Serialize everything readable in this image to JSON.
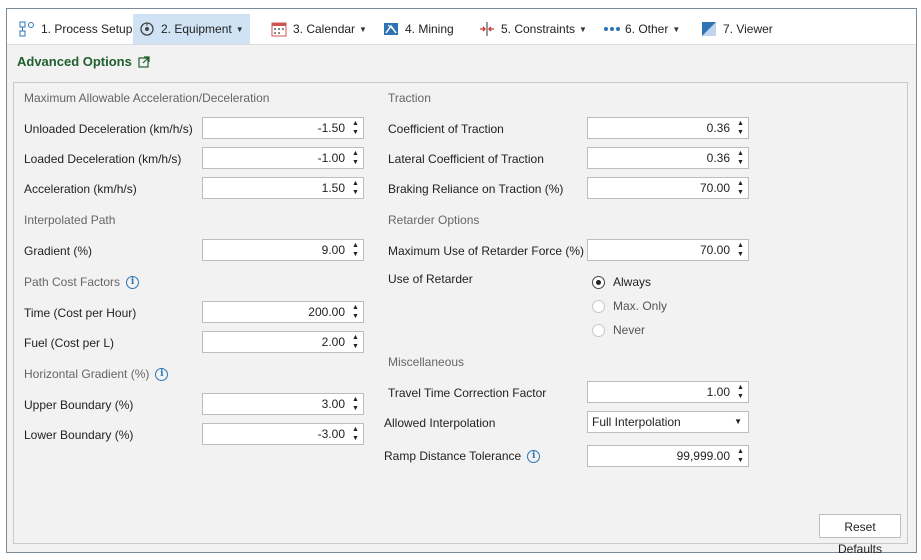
{
  "toolbar": {
    "items": [
      {
        "label": "1. Process Setup",
        "icon": "process-setup-icon",
        "has_dropdown": true
      },
      {
        "label": "2. Equipment",
        "icon": "equipment-icon",
        "has_dropdown": true,
        "active": true
      },
      {
        "label": "3. Calendar",
        "icon": "calendar-icon",
        "has_dropdown": true
      },
      {
        "label": "4. Mining",
        "icon": "mining-icon",
        "has_dropdown": false
      },
      {
        "label": "5. Constraints",
        "icon": "constraints-icon",
        "has_dropdown": true
      },
      {
        "label": "6. Other",
        "icon": "more-dots-icon",
        "has_dropdown": true
      },
      {
        "label": "7. Viewer",
        "icon": "viewer-icon",
        "has_dropdown": false
      }
    ],
    "caret": "▼"
  },
  "page": {
    "title": "Advanced Options"
  },
  "left": {
    "accel_section": "Maximum Allowable Acceleration/Deceleration",
    "unloaded_decel": {
      "label": "Unloaded Deceleration (km/h/s)",
      "value": "-1.50"
    },
    "loaded_decel": {
      "label": "Loaded Deceleration (km/h/s)",
      "value": "-1.00"
    },
    "acceleration": {
      "label": "Acceleration (km/h/s)",
      "value": "1.50"
    },
    "interp_section": "Interpolated Path",
    "gradient": {
      "label": "Gradient (%)",
      "value": "9.00"
    },
    "cost_section": "Path Cost Factors",
    "time_cost": {
      "label": "Time (Cost per Hour)",
      "value": "200.00"
    },
    "fuel_cost": {
      "label": "Fuel (Cost per L)",
      "value": "2.00"
    },
    "hgrad_section": "Horizontal Gradient (%)",
    "upper_boundary": {
      "label": "Upper Boundary (%)",
      "value": "3.00"
    },
    "lower_boundary": {
      "label": "Lower Boundary (%)",
      "value": "-3.00"
    }
  },
  "right": {
    "traction_section": "Traction",
    "coef_traction": {
      "label": "Coefficient of Traction",
      "value": "0.36"
    },
    "lat_coef_traction": {
      "label": "Lateral Coefficient of Traction",
      "value": "0.36"
    },
    "braking_reliance": {
      "label": "Braking Reliance on Traction (%)",
      "value": "70.00"
    },
    "retarder_section": "Retarder Options",
    "max_retarder": {
      "label": "Maximum Use of Retarder Force (%)",
      "value": "70.00"
    },
    "use_retarder_label": "Use of Retarder",
    "retarder_options": [
      {
        "label": "Always",
        "checked": true
      },
      {
        "label": "Max. Only",
        "checked": false
      },
      {
        "label": "Never",
        "checked": false
      }
    ],
    "misc_section": "Miscellaneous",
    "travel_time": {
      "label": "Travel Time Correction Factor",
      "value": "1.00"
    },
    "allowed_interp": {
      "label": "Allowed Interpolation",
      "value": "Full Interpolation"
    },
    "ramp_tolerance": {
      "label": "Ramp Distance Tolerance",
      "value": "99,999.00"
    }
  },
  "buttons": {
    "reset": "Reset Defaults"
  },
  "spinner": {
    "up": "▲",
    "down": "▼"
  },
  "colors": {
    "title_green": "#1f5f2e",
    "active_tab": "#cfe3f4",
    "info_blue": "#2e74b5"
  }
}
